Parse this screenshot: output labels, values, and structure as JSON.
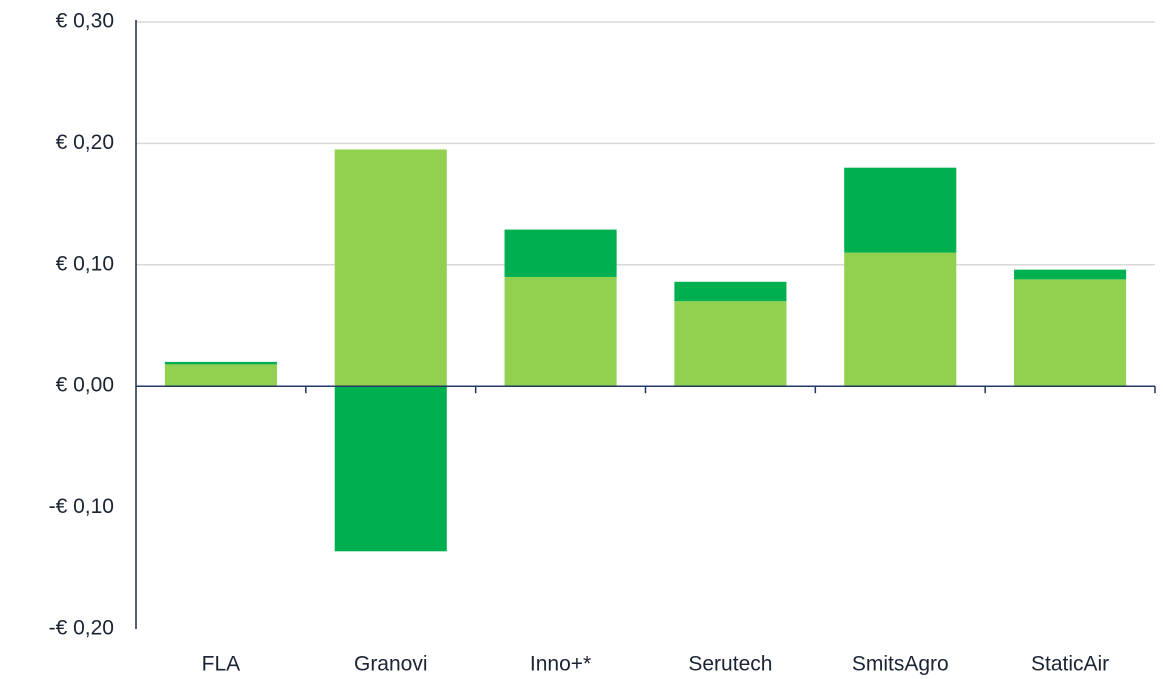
{
  "chart_data": {
    "type": "bar",
    "stacked": true,
    "categories": [
      "FLA",
      "Granovi",
      "Inno+*",
      "Serutech",
      "SmitsAgro",
      "StaticAir"
    ],
    "series": [
      {
        "color": "#92d050",
        "values": [
          0.018,
          0.195,
          0.09,
          0.07,
          0.11,
          0.088
        ]
      },
      {
        "color": "#00b050",
        "values": [
          0.002,
          -0.136,
          0.039,
          0.016,
          0.07,
          0.008
        ]
      }
    ],
    "ylim": [
      -0.2,
      0.3
    ],
    "yticks": [
      {
        "value": -0.2,
        "label": "-€ 0,20"
      },
      {
        "value": -0.1,
        "label": "-€ 0,10"
      },
      {
        "value": 0,
        "label": "€ 0,00"
      },
      {
        "value": 0.1,
        "label": "€ 0,10"
      },
      {
        "value": 0.2,
        "label": "€ 0,20"
      },
      {
        "value": 0.3,
        "label": "€ 0,30"
      }
    ],
    "grid": true
  }
}
